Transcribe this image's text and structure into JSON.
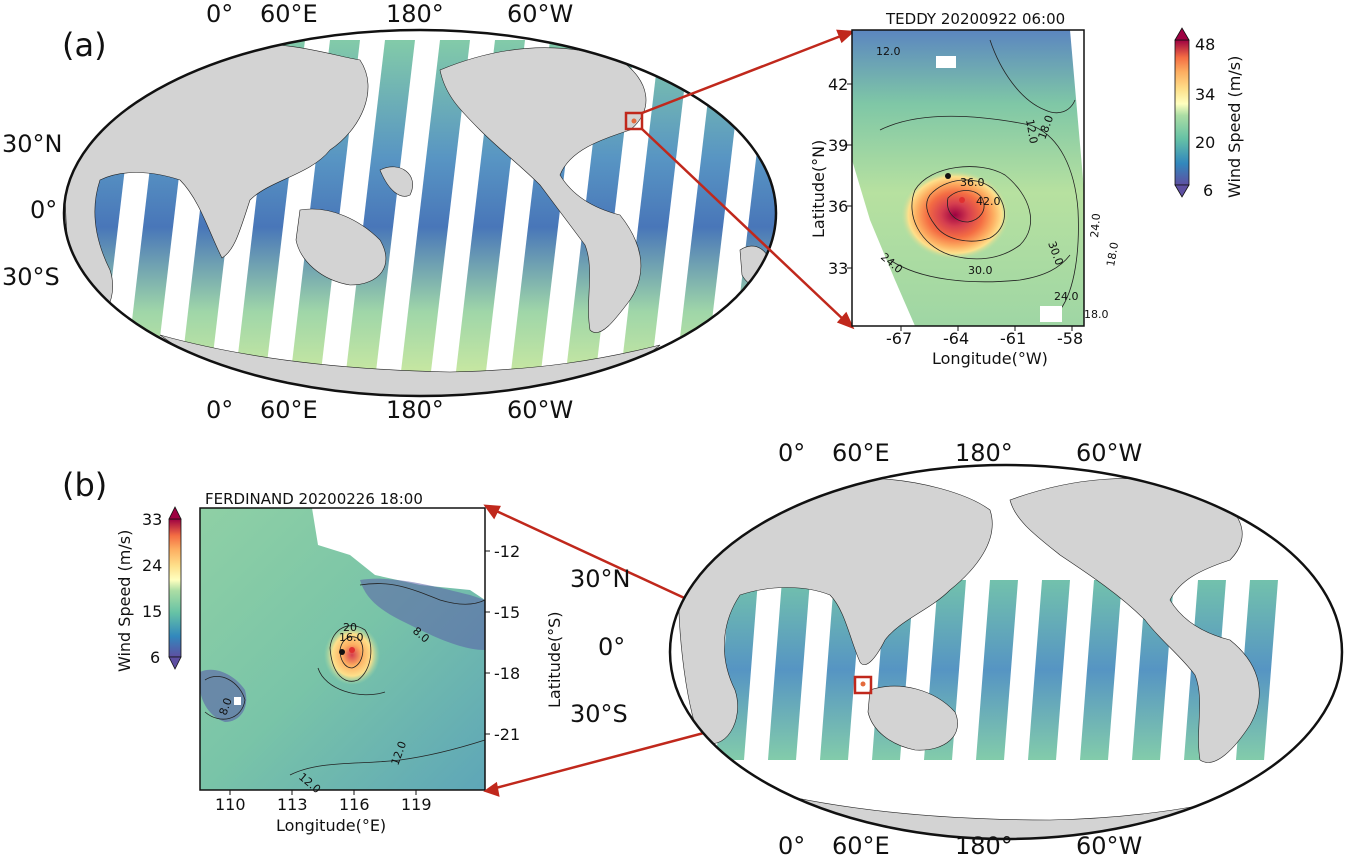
{
  "panel_a": {
    "label": "(a)",
    "world_top_ticks": [
      "0°",
      "60°E",
      "180°",
      "60°W"
    ],
    "world_bottom_ticks": [
      "0°",
      "60°E",
      "180°",
      "60°W"
    ],
    "world_left_ticks": [
      "30°N",
      "0°",
      "30°S"
    ],
    "inset": {
      "title": "TEDDY 20200922 06:00",
      "xlabel": "Longitude(°W)",
      "ylabel": "Latitude(°N)",
      "x_ticks": [
        "-67",
        "-64",
        "-61",
        "-58"
      ],
      "y_ticks": [
        "42",
        "39",
        "36",
        "33"
      ],
      "contour_labels": [
        "12.0",
        "12.0",
        "18.0",
        "18.0",
        "24.0",
        "24.0",
        "30.0",
        "30.0",
        "36.0",
        "42.0",
        "18.0",
        "24.0"
      ],
      "colorbar": {
        "label": "Wind Speed (m/s)",
        "ticks": [
          "48",
          "34",
          "20",
          "6"
        ]
      }
    }
  },
  "panel_b": {
    "label": "(b)",
    "world_top_ticks": [
      "0°",
      "60°E",
      "180°",
      "60°W"
    ],
    "world_bottom_ticks": [
      "0°",
      "60°E",
      "180°",
      "60°W"
    ],
    "world_left_ticks": [
      "30°N",
      "0°",
      "30°S"
    ],
    "inset": {
      "title": "FERDINAND 20200226 18:00",
      "xlabel": "Longitude(°E)",
      "ylabel": "Latitude(°S)",
      "x_ticks": [
        "110",
        "113",
        "116",
        "119"
      ],
      "y_ticks": [
        "-12",
        "-15",
        "-18",
        "-21"
      ],
      "contour_labels": [
        "8.0",
        "8.0",
        "12.0",
        "12.0",
        "16.0",
        "20"
      ],
      "colorbar": {
        "label": "Wind Speed (m/s)",
        "ticks": [
          "33",
          "24",
          "15",
          "6"
        ]
      }
    }
  },
  "colors": {
    "land": "#d3d3d3",
    "ocean_empty": "#ffffff",
    "swath_low": "#3f6fb5",
    "swath_mid": "#62bea6",
    "swath_high": "#d5ec9a",
    "storm_core": "#d23c4e",
    "arrow": "#c0281c",
    "box": "#c0281c"
  }
}
